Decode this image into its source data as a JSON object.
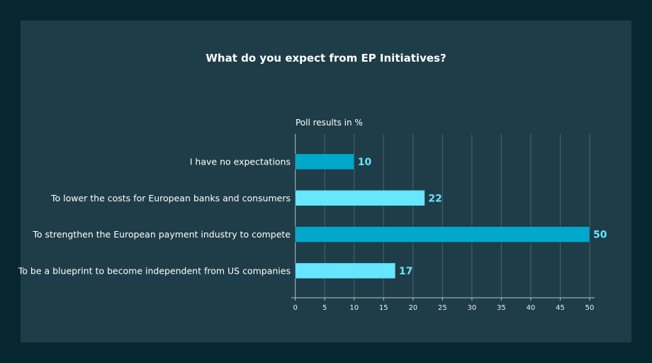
{
  "chart_data": {
    "type": "bar",
    "orientation": "horizontal",
    "title": "What do you expect from EP Initiatives?",
    "subtitle": "Poll results in %",
    "categories": [
      "I have no expectations",
      "To lower the costs for European banks and consumers",
      "To strengthen the European payment industry to compete",
      "To be a blueprint to become independent from US companies"
    ],
    "values": [
      10,
      22,
      50,
      17
    ],
    "bar_colors": [
      "#00a9cc",
      "#66e6ff",
      "#00a9cc",
      "#66e6ff"
    ],
    "label_color": "#66e6ff",
    "xlim": [
      0,
      50
    ],
    "xticks": [
      0,
      5,
      10,
      15,
      20,
      25,
      30,
      35,
      40,
      45,
      50
    ],
    "grid": true
  }
}
